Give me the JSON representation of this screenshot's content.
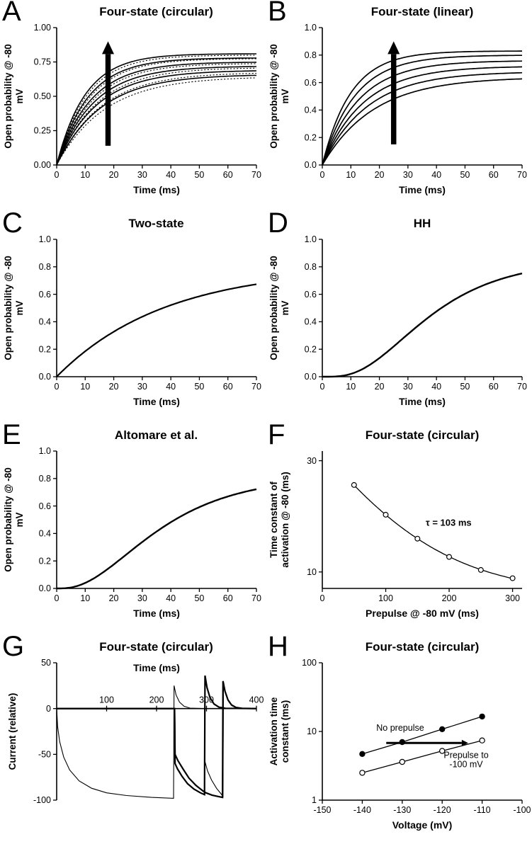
{
  "colors": {
    "ink": "#000000",
    "background": "#ffffff"
  },
  "chart_data": [
    {
      "panel": "A",
      "title": "Four-state (circular)",
      "type": "line",
      "xlabel": "Time (ms)",
      "ylabel_lines": [
        "Open probability @ -80",
        "mV"
      ],
      "xlim": [
        0,
        70
      ],
      "ylim": [
        0,
        1
      ],
      "xtick_vals": [
        0,
        10,
        20,
        30,
        40,
        50,
        60,
        70
      ],
      "xtick_labels": [
        "0",
        "10",
        "20",
        "30",
        "40",
        "50",
        "60",
        "70"
      ],
      "ytick_vals": [
        0,
        0.25,
        0.5,
        0.75,
        1
      ],
      "ytick_labels": [
        "0.00",
        "0.25",
        "0.50",
        "0.75",
        "1.00"
      ],
      "series": [
        {
          "model": "satexp",
          "A": 0.66,
          "tau": 15.5,
          "width": 1.6
        },
        {
          "model": "satexp",
          "A": 0.69,
          "tau": 14,
          "width": 1.6
        },
        {
          "model": "satexp",
          "A": 0.72,
          "tau": 13,
          "width": 1.6
        },
        {
          "model": "satexp",
          "A": 0.75,
          "tau": 12,
          "width": 1.6
        },
        {
          "model": "satexp",
          "A": 0.78,
          "tau": 11,
          "width": 1.6
        },
        {
          "model": "satexp",
          "A": 0.81,
          "tau": 10,
          "width": 1.6
        },
        {
          "model": "satexp",
          "A": 0.645,
          "tau": 17,
          "width": 1.1,
          "dash": true
        },
        {
          "model": "satexp",
          "A": 0.675,
          "tau": 15.5,
          "width": 1.1,
          "dash": true
        },
        {
          "model": "satexp",
          "A": 0.71,
          "tau": 14,
          "width": 1.1,
          "dash": true
        },
        {
          "model": "satexp",
          "A": 0.74,
          "tau": 12.5,
          "width": 1.1,
          "dash": true
        },
        {
          "model": "satexp",
          "A": 0.775,
          "tau": 11.5,
          "width": 1.1,
          "dash": true
        },
        {
          "model": "satexp",
          "A": 0.8,
          "tau": 10.5,
          "width": 1.1,
          "dash": true
        }
      ],
      "annotations": [
        {
          "type": "arrow",
          "from": [
            18,
            0.14
          ],
          "to": [
            18,
            0.9
          ],
          "width": 7.5,
          "head": 18,
          "headw": 8.5
        }
      ]
    },
    {
      "panel": "B",
      "title": "Four-state (linear)",
      "type": "line",
      "xlabel": "Time (ms)",
      "ylabel_lines": [
        "Open probability @ -80",
        "mV"
      ],
      "xlim": [
        0,
        70
      ],
      "ylim": [
        0,
        1
      ],
      "xtick_vals": [
        0,
        10,
        20,
        30,
        40,
        50,
        60,
        70
      ],
      "xtick_labels": [
        "0",
        "10",
        "20",
        "30",
        "40",
        "50",
        "60",
        "70"
      ],
      "ytick_vals": [
        0,
        0.2,
        0.4,
        0.6,
        0.8,
        1
      ],
      "ytick_labels": [
        "0.0",
        "0.2",
        "0.4",
        "0.6",
        "0.8",
        "1.0"
      ],
      "series": [
        {
          "model": "satexp",
          "A": 0.64,
          "tau": 18,
          "width": 1.7
        },
        {
          "model": "satexp",
          "A": 0.68,
          "tau": 16,
          "width": 1.7
        },
        {
          "model": "satexp",
          "A": 0.72,
          "tau": 14.5,
          "width": 1.7
        },
        {
          "model": "satexp",
          "A": 0.76,
          "tau": 13,
          "width": 1.7
        },
        {
          "model": "satexp",
          "A": 0.8,
          "tau": 11.5,
          "width": 1.7
        },
        {
          "model": "satexp",
          "A": 0.83,
          "tau": 10,
          "width": 1.7
        }
      ],
      "annotations": [
        {
          "type": "arrow",
          "from": [
            25,
            0.15
          ],
          "to": [
            25,
            0.9
          ],
          "width": 7.5,
          "head": 18,
          "headw": 8.5
        }
      ]
    },
    {
      "panel": "C",
      "title": "Two-state",
      "type": "line",
      "xlabel": "Time (ms)",
      "ylabel_lines": [
        "Open probability @ -80",
        "mV"
      ],
      "xlim": [
        0,
        70
      ],
      "ylim": [
        0,
        1
      ],
      "xtick_vals": [
        0,
        10,
        20,
        30,
        40,
        50,
        60,
        70
      ],
      "xtick_labels": [
        "0",
        "10",
        "20",
        "30",
        "40",
        "50",
        "60",
        "70"
      ],
      "ytick_vals": [
        0,
        0.2,
        0.4,
        0.6,
        0.8,
        1
      ],
      "ytick_labels": [
        "0.0",
        "0.2",
        "0.4",
        "0.6",
        "0.8",
        "1.0"
      ],
      "series": [
        {
          "model": "satexp",
          "A": 0.8,
          "tau": 38,
          "width": 2.2
        }
      ],
      "annotations": []
    },
    {
      "panel": "D",
      "title": "HH",
      "type": "line",
      "xlabel": "Time (ms)",
      "ylabel_lines": [
        "Open probability @ -80",
        "mV"
      ],
      "xlim": [
        0,
        70
      ],
      "ylim": [
        0,
        1
      ],
      "xtick_vals": [
        0,
        10,
        20,
        30,
        40,
        50,
        60,
        70
      ],
      "xtick_labels": [
        "0",
        "10",
        "20",
        "30",
        "40",
        "50",
        "60",
        "70"
      ],
      "ytick_vals": [
        0,
        0.2,
        0.4,
        0.6,
        0.8,
        1
      ],
      "ytick_labels": [
        "0.0",
        "0.2",
        "0.4",
        "0.6",
        "0.8",
        "1.0"
      ],
      "series": [
        {
          "model": "satexp",
          "A": 0.85,
          "tau": 20,
          "n": 4,
          "width": 2.4
        }
      ],
      "annotations": []
    },
    {
      "panel": "E",
      "title": "Altomare et al.",
      "type": "line",
      "xlabel": "Time (ms)",
      "ylabel_lines": [
        "Open probability @ -80",
        "mV"
      ],
      "xlim": [
        0,
        70
      ],
      "ylim": [
        0,
        1
      ],
      "xtick_vals": [
        0,
        10,
        20,
        30,
        40,
        50,
        60,
        70
      ],
      "xtick_labels": [
        "0",
        "10",
        "20",
        "30",
        "40",
        "50",
        "60",
        "70"
      ],
      "ytick_vals": [
        0,
        0.2,
        0.4,
        0.6,
        0.8,
        1
      ],
      "ytick_labels": [
        "0.0",
        "0.2",
        "0.4",
        "0.6",
        "0.8",
        "1.0"
      ],
      "series": [
        {
          "model": "satexp",
          "A": 0.82,
          "tau": 22,
          "n": 3,
          "width": 2.4
        }
      ],
      "annotations": []
    },
    {
      "panel": "F",
      "title": "Four-state (circular)",
      "type": "scatter",
      "xlabel": "Prepulse @ -80 mV (ms)",
      "ylabel_lines": [
        "Time constant of",
        "activation @ -80 (ms)"
      ],
      "xlim": [
        0,
        315
      ],
      "ylim": [
        8.5,
        33
      ],
      "yscale": "log",
      "xtick_vals": [
        0,
        100,
        200,
        300
      ],
      "xtick_labels": [
        "0",
        "100",
        "200",
        "300"
      ],
      "ytick_vals": [
        10,
        30
      ],
      "ytick_labels": [
        "10",
        "30"
      ],
      "series": [
        {
          "model": "expdecay",
          "C": 8.0,
          "A": 25.3,
          "tau": 103,
          "xrange": [
            50,
            300
          ],
          "width": 1.3
        },
        {
          "points": [
            [
              50,
              23.6
            ],
            [
              100,
              17.6
            ],
            [
              150,
              13.9
            ],
            [
              200,
              11.6
            ],
            [
              250,
              10.2
            ],
            [
              300,
              9.4
            ]
          ],
          "width": 0,
          "marker": "open",
          "msize": 3.4
        }
      ],
      "annotations": [
        {
          "type": "text",
          "x": 163,
          "y": 15.8,
          "lines": [
            "τ = 103 ms"
          ],
          "bold": true,
          "size": 13,
          "anchor": "start"
        }
      ]
    },
    {
      "panel": "G",
      "title": "Four-state (circular)",
      "type": "line",
      "xlabel": "Time (ms)",
      "xlabel_top": true,
      "xaxis_at_zero": true,
      "ylabel_lines": [
        "Current (relative)"
      ],
      "xlim": [
        0,
        400
      ],
      "ylim": [
        -100,
        50
      ],
      "xtick_vals": [
        100,
        200,
        300,
        400
      ],
      "xtick_labels": [
        "100",
        "200",
        "300",
        "400"
      ],
      "ytick_vals": [
        -100,
        -50,
        0,
        50
      ],
      "ytick_labels": [
        "-100",
        "-50",
        "0",
        "50"
      ],
      "series": [
        {
          "points": [
            [
              0,
              0
            ],
            [
              2,
              -20
            ],
            [
              6,
              -36
            ],
            [
              14,
              -53
            ],
            [
              26,
              -67
            ],
            [
              45,
              -79
            ],
            [
              70,
              -87
            ],
            [
              100,
              -92
            ],
            [
              140,
              -95
            ],
            [
              190,
              -97
            ],
            [
              234,
              -98
            ],
            [
              235,
              25
            ],
            [
              239,
              15
            ],
            [
              246,
              7
            ],
            [
              255,
              2.5
            ],
            [
              267,
              0.5
            ],
            [
              296,
              0
            ],
            [
              297,
              -58
            ],
            [
              302,
              -68
            ],
            [
              310,
              -78
            ],
            [
              320,
              -87
            ],
            [
              329,
              -93
            ],
            [
              333,
              -96
            ],
            [
              334,
              28
            ],
            [
              338,
              17
            ],
            [
              344,
              8
            ],
            [
              351,
              3
            ],
            [
              361,
              0.8
            ],
            [
              375,
              0
            ],
            [
              400,
              0
            ]
          ],
          "width": 1.1
        },
        {
          "points": [
            [
              0,
              0
            ],
            [
              236,
              0
            ],
            [
              237,
              -60
            ],
            [
              242,
              -66
            ],
            [
              251,
              -74
            ],
            [
              262,
              -82
            ],
            [
              275,
              -88
            ],
            [
              288,
              -92
            ],
            [
              296,
              -94
            ],
            [
              297,
              36
            ],
            [
              301,
              23
            ],
            [
              307,
              12
            ],
            [
              315,
              5
            ],
            [
              325,
              1.5
            ],
            [
              338,
              0.3
            ],
            [
              400,
              0
            ]
          ],
          "width": 2.2
        },
        {
          "points": [
            [
              0,
              0
            ],
            [
              236,
              0
            ],
            [
              237,
              -50
            ],
            [
              243,
              -57
            ],
            [
              253,
              -66
            ],
            [
              265,
              -76
            ],
            [
              279,
              -84
            ],
            [
              293,
              -90
            ],
            [
              299,
              -92
            ],
            [
              311,
              -94.5
            ],
            [
              323,
              -96
            ],
            [
              332,
              -97
            ],
            [
              333,
              30
            ],
            [
              337,
              19
            ],
            [
              343,
              9.5
            ],
            [
              350,
              4
            ],
            [
              359,
              1.2
            ],
            [
              371,
              0.3
            ],
            [
              400,
              0
            ]
          ],
          "width": 2.2
        }
      ],
      "annotations": []
    },
    {
      "panel": "H",
      "title": "Four-state (circular)",
      "type": "scatter",
      "xlabel": "Voltage (mV)",
      "ylabel_lines": [
        "Activation time",
        "constant (ms)"
      ],
      "xlim": [
        -150,
        -100
      ],
      "ylim": [
        1,
        100
      ],
      "yscale": "log",
      "xtick_vals": [
        -150,
        -140,
        -130,
        -120,
        -110,
        -100
      ],
      "xtick_labels": [
        "-150",
        "-140",
        "-130",
        "-120",
        "-110",
        "-100"
      ],
      "ytick_vals": [
        1,
        10,
        100
      ],
      "ytick_labels": [
        "1",
        "10",
        "100"
      ],
      "series": [
        {
          "points": [
            [
              -140,
              4.7
            ],
            [
              -130,
              7.0
            ],
            [
              -120,
              10.8
            ],
            [
              -110,
              16.5
            ]
          ],
          "width": 1.3,
          "marker": "filled",
          "msize": 3.6
        },
        {
          "points": [
            [
              -140,
              2.5
            ],
            [
              -130,
              3.6
            ],
            [
              -120,
              5.2
            ],
            [
              -110,
              7.4
            ]
          ],
          "width": 1.3,
          "marker": "open",
          "msize": 3.6
        }
      ],
      "annotations": [
        {
          "type": "text",
          "x": -130.5,
          "y": 10.3,
          "lines": [
            "No prepulse"
          ],
          "size": 12.5
        },
        {
          "type": "arrow",
          "from": [
            -134,
            6.8
          ],
          "to": [
            -113.5,
            6.8
          ],
          "width": 3,
          "head": 9,
          "headw": 4.5
        },
        {
          "type": "text",
          "x": -114,
          "y": 4.1,
          "lines": [
            "Prepulse to",
            "-100 mV"
          ],
          "size": 12.5
        }
      ]
    }
  ]
}
